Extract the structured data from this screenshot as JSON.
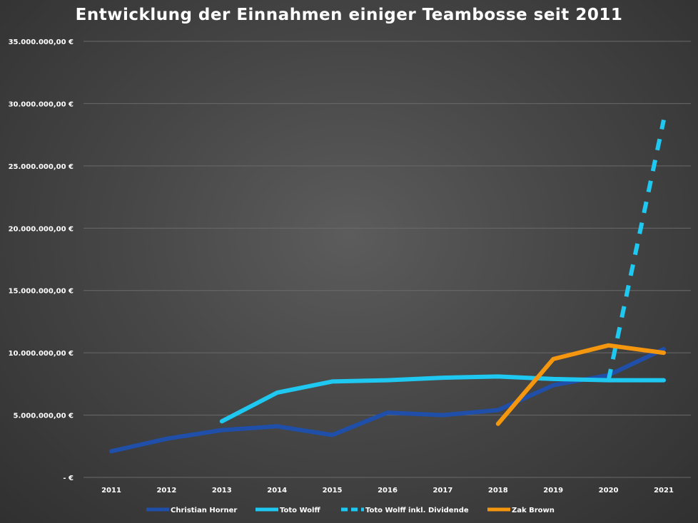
{
  "chart_data": {
    "type": "line",
    "title": "Entwicklung der Einnahmen einiger Teambosse seit 2011",
    "xlabel": "",
    "ylabel": "",
    "categories": [
      "2011",
      "2012",
      "2013",
      "2014",
      "2015",
      "2016",
      "2017",
      "2018",
      "2019",
      "2020",
      "2021"
    ],
    "ylim": [
      0,
      35000000
    ],
    "y_ticks": [
      0,
      5000000,
      10000000,
      15000000,
      20000000,
      25000000,
      30000000,
      35000000
    ],
    "y_tick_labels": [
      "-   €",
      "5.000.000,00 €",
      "10.000.000,00 €",
      "15.000.000,00 €",
      "20.000.000,00 €",
      "25.000.000,00 €",
      "30.000.000,00 €",
      "35.000.000,00 €"
    ],
    "grid": true,
    "legend_position": "bottom",
    "series": [
      {
        "name": "Christian Horner",
        "color": "#1f4fa8",
        "style": "solid",
        "values": [
          2100000,
          3100000,
          3800000,
          4100000,
          3400000,
          5200000,
          5000000,
          5400000,
          7400000,
          8200000,
          10300000
        ]
      },
      {
        "name": "Toto Wolff",
        "color": "#1ec8f0",
        "style": "solid",
        "values": [
          null,
          null,
          4500000,
          6800000,
          7700000,
          7800000,
          8000000,
          8100000,
          7900000,
          7800000,
          7800000
        ]
      },
      {
        "name": "Toto Wolff inkl. Dividende",
        "color": "#1ec8f0",
        "style": "dashed",
        "values": [
          null,
          null,
          null,
          null,
          null,
          null,
          null,
          null,
          null,
          7800000,
          28700000
        ]
      },
      {
        "name": "Zak Brown",
        "color": "#f5960f",
        "style": "solid",
        "values": [
          null,
          null,
          null,
          null,
          null,
          null,
          null,
          4300000,
          9500000,
          10600000,
          10000000
        ]
      }
    ]
  }
}
